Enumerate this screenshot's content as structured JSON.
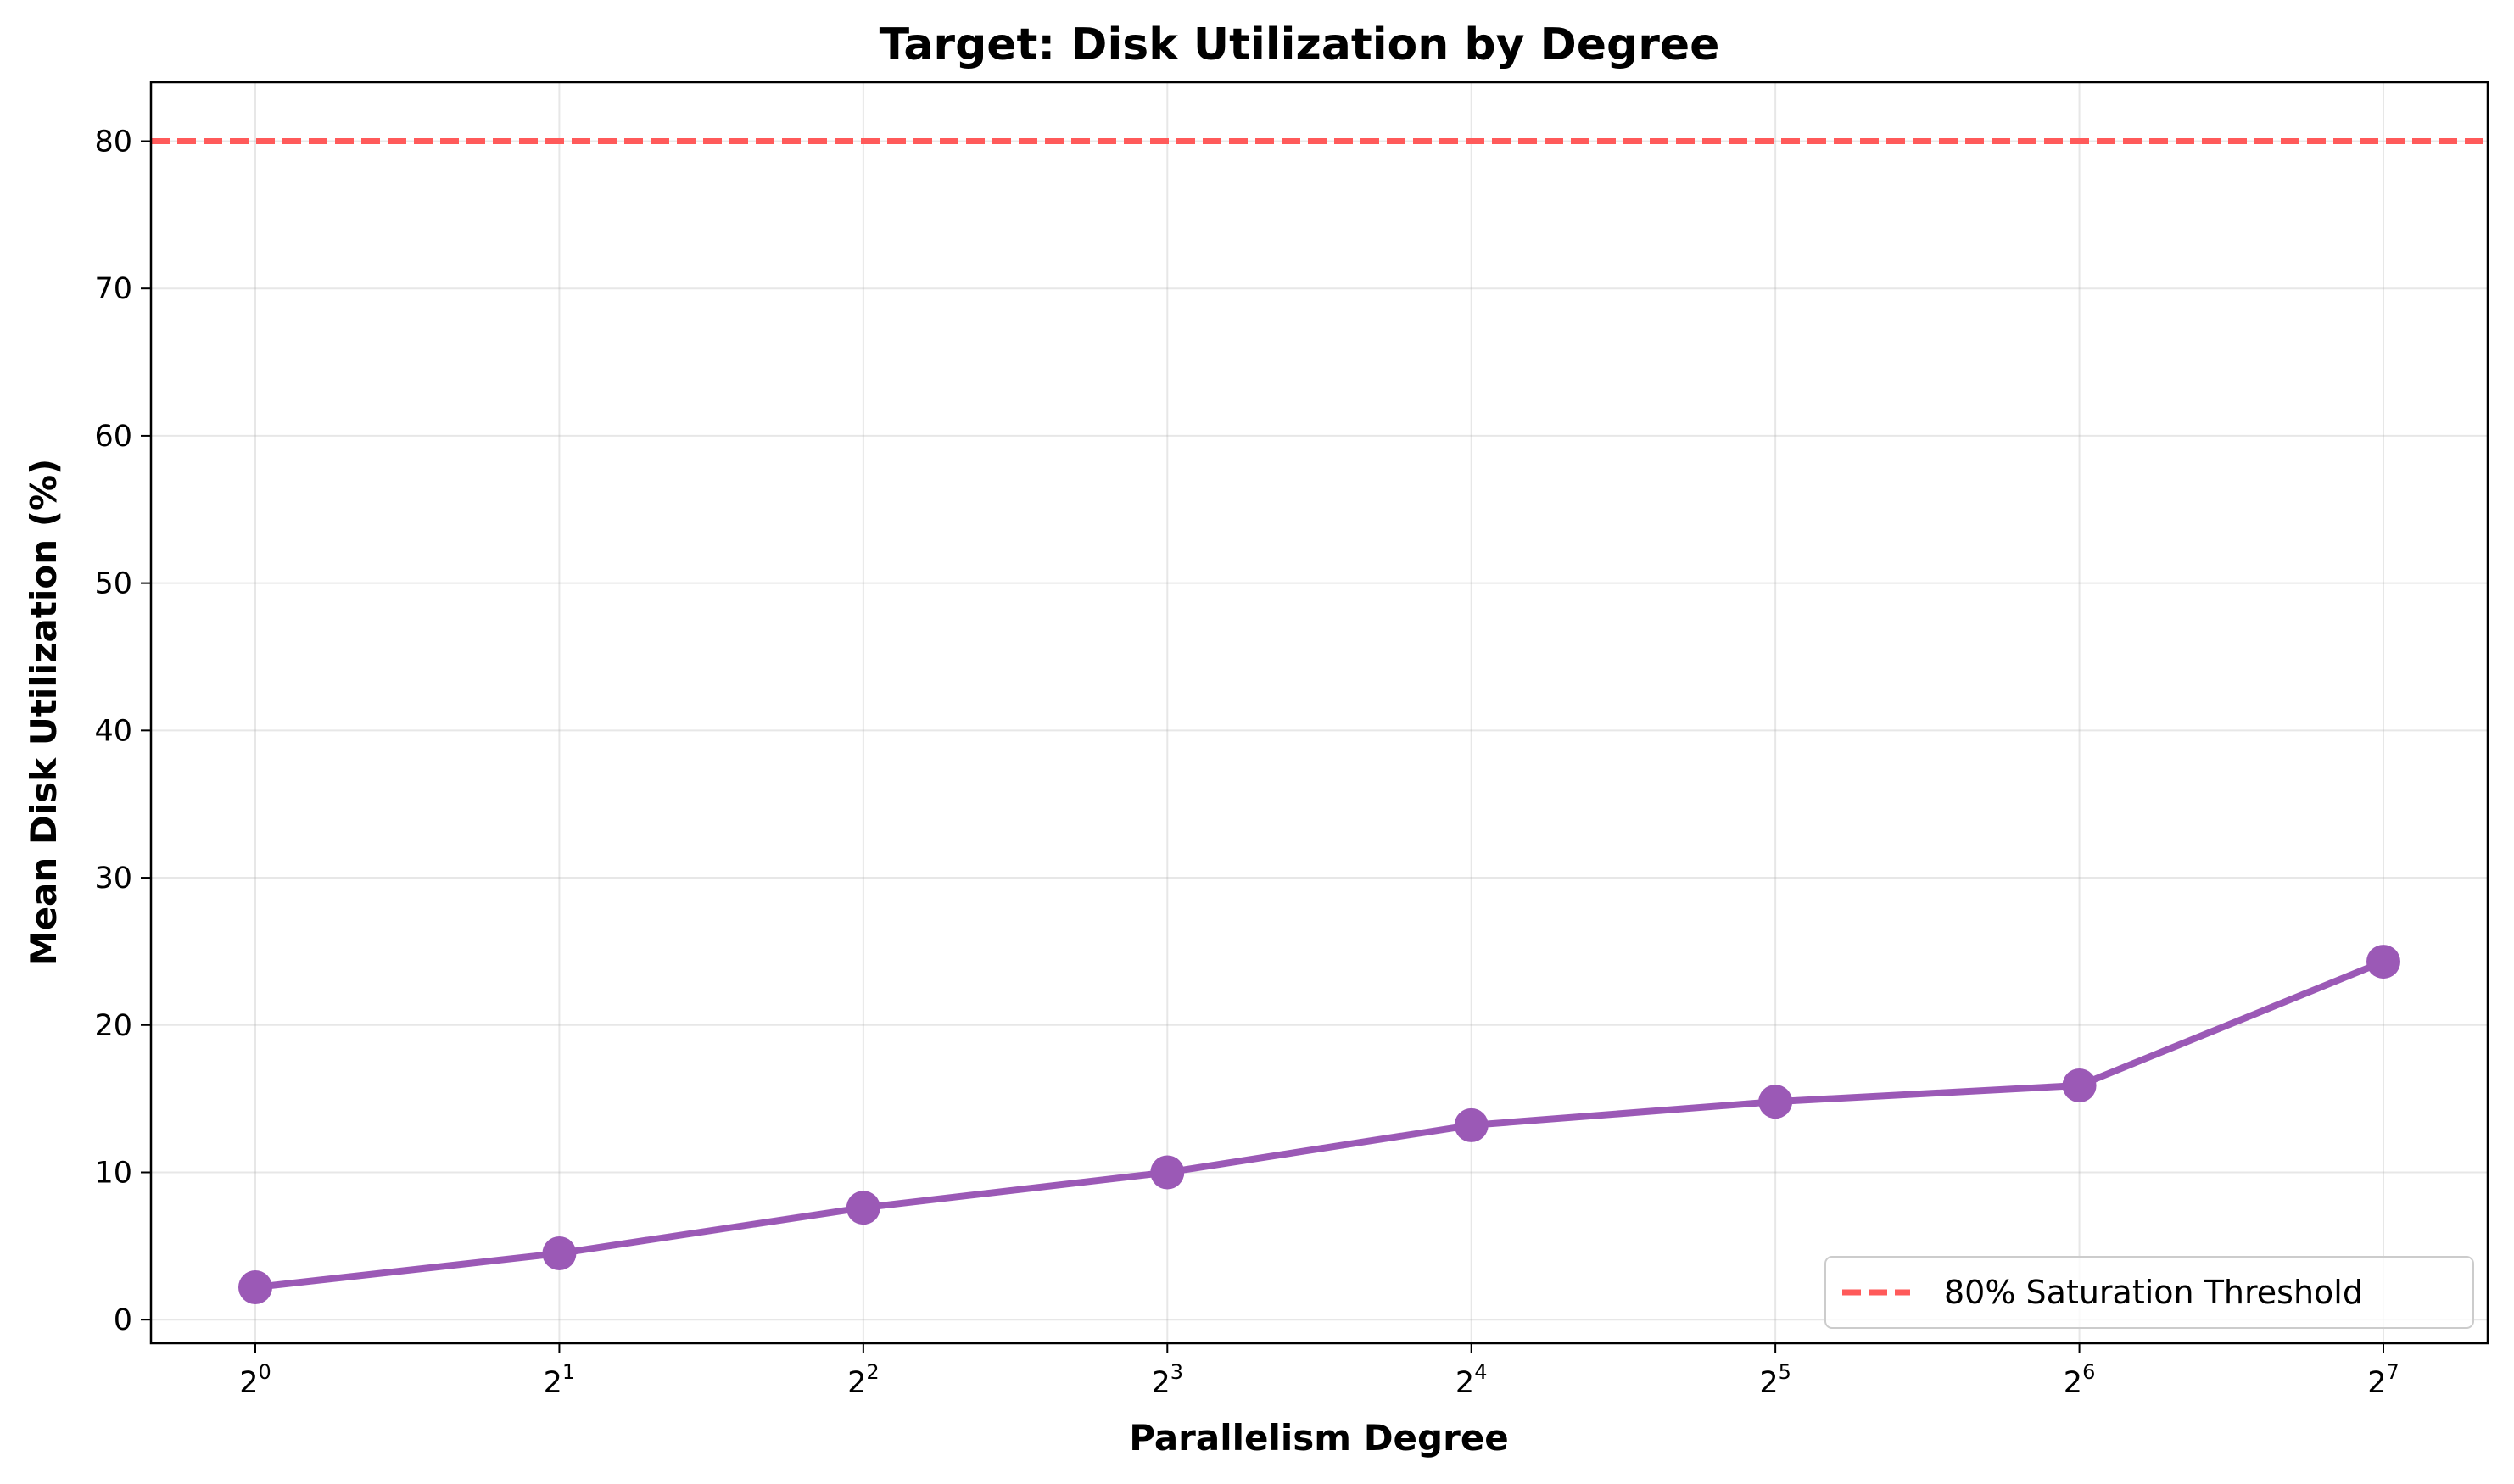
{
  "chart_data": {
    "type": "line",
    "title": "Target: Disk Utilization by Degree",
    "xlabel": "Parallelism Degree",
    "ylabel": "Mean Disk Utilization (%)",
    "x_scale": "log2",
    "x_tick_base": "2",
    "x_tick_exponents": [
      "0",
      "1",
      "2",
      "3",
      "4",
      "5",
      "6",
      "7"
    ],
    "x": [
      1,
      2,
      4,
      8,
      16,
      32,
      64,
      128
    ],
    "y_ticks": [
      "0",
      "10",
      "20",
      "30",
      "40",
      "50",
      "60",
      "70",
      "80"
    ],
    "ylim": [
      -1.6,
      84
    ],
    "grid": true,
    "legend_position": "lower-right",
    "series": [
      {
        "values": [
          2.2,
          4.5,
          7.6,
          10.0,
          13.2,
          14.8,
          15.9,
          24.3
        ],
        "color": "#9b59b6",
        "marker": "circle"
      }
    ],
    "reference_lines": [
      {
        "name": "80% Saturation Threshold",
        "y": 80,
        "color": "#ff5a5a",
        "style": "dashed"
      }
    ]
  }
}
